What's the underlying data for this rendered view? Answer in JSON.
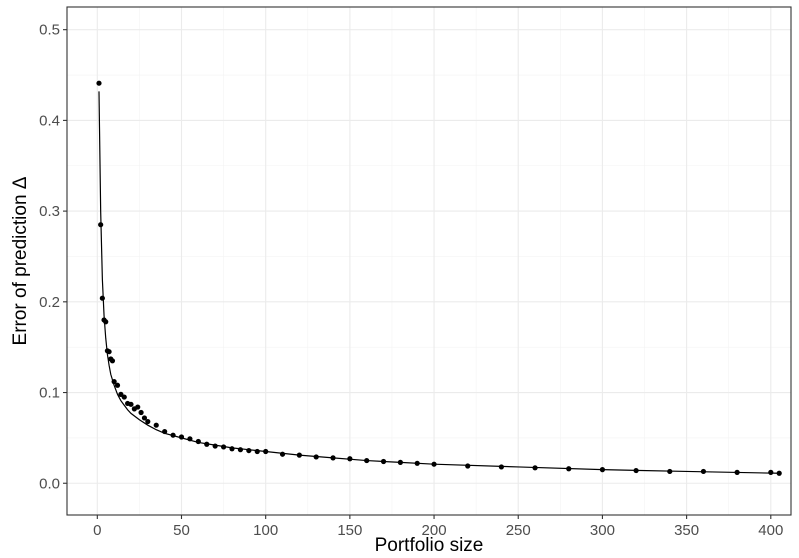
{
  "chart_data": {
    "type": "scatter",
    "xlabel": "Portfolio size",
    "ylabel": "Error of prediction Δ",
    "xlim": [
      -18,
      412
    ],
    "ylim": [
      -0.035,
      0.525
    ],
    "x_ticks": [
      0,
      50,
      100,
      150,
      200,
      250,
      300,
      350,
      400
    ],
    "x_tick_labels": [
      "0",
      "50",
      "100",
      "150",
      "200",
      "250",
      "300",
      "350",
      "400"
    ],
    "y_ticks": [
      0.0,
      0.1,
      0.2,
      0.3,
      0.4,
      0.5
    ],
    "y_tick_labels": [
      "0.0",
      "0.1",
      "0.2",
      "0.3",
      "0.4",
      "0.5"
    ],
    "grid": true,
    "series": [
      {
        "kind": "points",
        "color": "#000000",
        "x": [
          1,
          2,
          3,
          4,
          5,
          6,
          7,
          8,
          9,
          10,
          12,
          14,
          16,
          18,
          20,
          22,
          24,
          26,
          28,
          30,
          35,
          40,
          45,
          50,
          55,
          60,
          65,
          70,
          75,
          80,
          85,
          90,
          95,
          100,
          110,
          120,
          130,
          140,
          150,
          160,
          170,
          180,
          190,
          200,
          220,
          240,
          260,
          280,
          300,
          320,
          340,
          360,
          380,
          400,
          405
        ],
        "y": [
          0.441,
          0.285,
          0.204,
          0.18,
          0.178,
          0.146,
          0.145,
          0.137,
          0.135,
          0.112,
          0.108,
          0.098,
          0.095,
          0.088,
          0.087,
          0.082,
          0.084,
          0.078,
          0.072,
          0.068,
          0.064,
          0.057,
          0.053,
          0.051,
          0.049,
          0.046,
          0.043,
          0.041,
          0.04,
          0.038,
          0.037,
          0.036,
          0.035,
          0.035,
          0.032,
          0.031,
          0.029,
          0.028,
          0.027,
          0.025,
          0.024,
          0.023,
          0.022,
          0.021,
          0.019,
          0.018,
          0.017,
          0.016,
          0.015,
          0.014,
          0.013,
          0.013,
          0.012,
          0.012,
          0.011
        ]
      },
      {
        "kind": "line",
        "color": "#000000",
        "x": [
          1,
          2,
          3,
          4,
          5,
          6,
          7,
          8,
          10,
          12,
          14,
          16,
          18,
          20,
          25,
          30,
          35,
          40,
          50,
          60,
          70,
          80,
          90,
          100,
          120,
          140,
          160,
          180,
          200,
          250,
          300,
          350,
          405
        ],
        "y": [
          0.432,
          0.3,
          0.225,
          0.185,
          0.16,
          0.142,
          0.13,
          0.12,
          0.108,
          0.098,
          0.091,
          0.086,
          0.081,
          0.077,
          0.07,
          0.064,
          0.059,
          0.055,
          0.05,
          0.045,
          0.042,
          0.039,
          0.037,
          0.035,
          0.031,
          0.028,
          0.025,
          0.023,
          0.021,
          0.018,
          0.015,
          0.013,
          0.011
        ]
      }
    ]
  }
}
